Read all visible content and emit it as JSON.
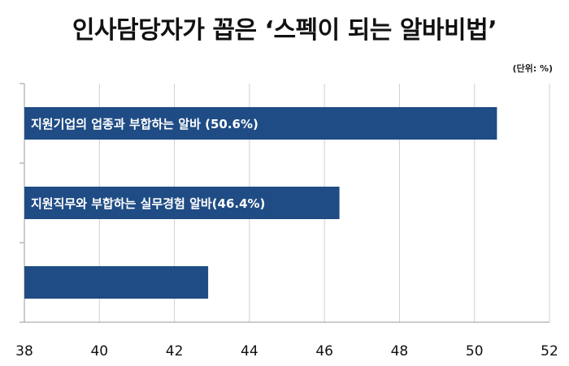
{
  "title": "인사담당자가 꼽은 ‘스펙이 되는 알바비법’",
  "unit": "(단위: %)",
  "colors": {
    "bar": "#1f4c84",
    "grid": "#d0d0d0",
    "axis": "#9a9a9a"
  },
  "chart_data": {
    "type": "bar",
    "orientation": "horizontal",
    "categories": [
      "지원기업의 업종과 부합하는 알바 (50.6%)",
      "지원직무와 부합하는 실무경험 알바(46.4%)",
      ""
    ],
    "values": [
      50.6,
      46.4,
      42.9
    ],
    "xlim": [
      38,
      52
    ],
    "xticks": [
      "38",
      "40",
      "42",
      "44",
      "46",
      "48",
      "50",
      "52"
    ],
    "grid": true
  }
}
